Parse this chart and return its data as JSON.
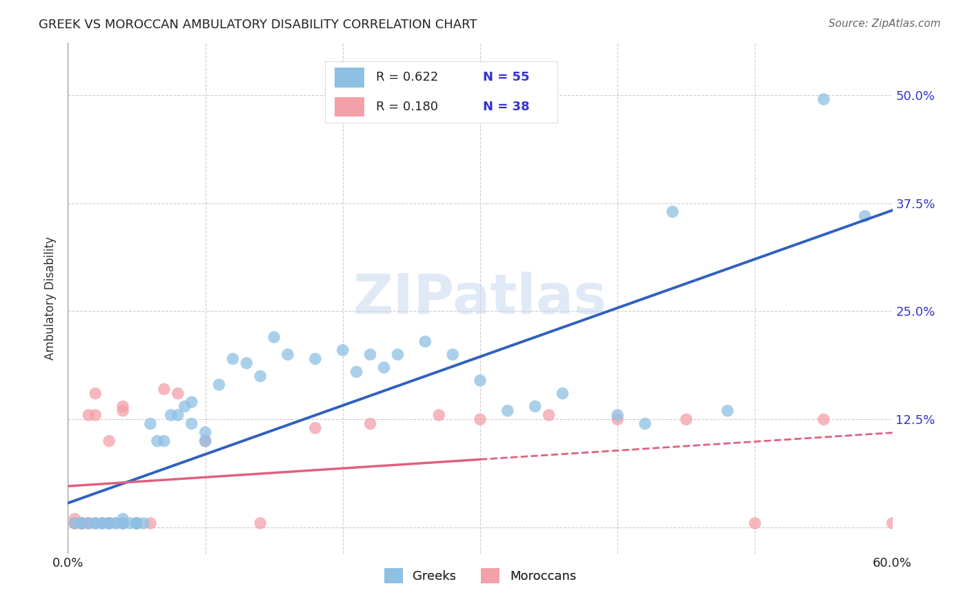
{
  "title": "GREEK VS MOROCCAN AMBULATORY DISABILITY CORRELATION CHART",
  "source": "Source: ZipAtlas.com",
  "xlabel_label": "Greeks",
  "xlabel_label2": "Moroccans",
  "ylabel": "Ambulatory Disability",
  "xlim": [
    0.0,
    0.6
  ],
  "ylim": [
    -0.03,
    0.56
  ],
  "x_ticks": [
    0.0,
    0.1,
    0.2,
    0.3,
    0.4,
    0.5,
    0.6
  ],
  "x_tick_labels": [
    "0.0%",
    "",
    "",
    "",
    "",
    "",
    "60.0%"
  ],
  "y_ticks": [
    0.0,
    0.125,
    0.25,
    0.375,
    0.5
  ],
  "y_tick_labels_right": [
    "",
    "12.5%",
    "25.0%",
    "37.5%",
    "50.0%"
  ],
  "grid_color": "#cccccc",
  "background_color": "#ffffff",
  "watermark": "ZIPatlas",
  "legend_R1": "R = 0.622",
  "legend_N1": "N = 55",
  "legend_R2": "R = 0.180",
  "legend_N2": "N = 38",
  "blue_color": "#8ec0e4",
  "pink_color": "#f4a0a8",
  "blue_line_color": "#3060c0",
  "pink_line_color": "#e06080",
  "legend_text_color": "#3333cc",
  "greeks_x": [
    0.005,
    0.01,
    0.01,
    0.015,
    0.02,
    0.02,
    0.025,
    0.025,
    0.03,
    0.03,
    0.03,
    0.035,
    0.035,
    0.04,
    0.04,
    0.04,
    0.045,
    0.05,
    0.05,
    0.05,
    0.055,
    0.06,
    0.065,
    0.07,
    0.075,
    0.08,
    0.085,
    0.09,
    0.09,
    0.1,
    0.1,
    0.11,
    0.12,
    0.13,
    0.14,
    0.15,
    0.16,
    0.18,
    0.2,
    0.21,
    0.22,
    0.23,
    0.24,
    0.26,
    0.28,
    0.3,
    0.32,
    0.34,
    0.36,
    0.4,
    0.42,
    0.44,
    0.48,
    0.55,
    0.58
  ],
  "greeks_y": [
    0.005,
    0.005,
    0.005,
    0.005,
    0.005,
    0.005,
    0.005,
    0.005,
    0.005,
    0.005,
    0.005,
    0.005,
    0.005,
    0.005,
    0.01,
    0.005,
    0.005,
    0.005,
    0.005,
    0.005,
    0.005,
    0.12,
    0.1,
    0.1,
    0.13,
    0.13,
    0.14,
    0.145,
    0.12,
    0.11,
    0.1,
    0.165,
    0.195,
    0.19,
    0.175,
    0.22,
    0.2,
    0.195,
    0.205,
    0.18,
    0.2,
    0.185,
    0.2,
    0.215,
    0.2,
    0.17,
    0.135,
    0.14,
    0.155,
    0.13,
    0.12,
    0.365,
    0.135,
    0.495,
    0.36
  ],
  "moroccans_x": [
    0.005,
    0.005,
    0.005,
    0.01,
    0.01,
    0.01,
    0.01,
    0.01,
    0.015,
    0.015,
    0.015,
    0.02,
    0.02,
    0.02,
    0.025,
    0.03,
    0.03,
    0.03,
    0.04,
    0.04,
    0.04,
    0.05,
    0.05,
    0.06,
    0.07,
    0.08,
    0.1,
    0.14,
    0.18,
    0.22,
    0.27,
    0.3,
    0.35,
    0.4,
    0.45,
    0.5,
    0.55,
    0.6
  ],
  "moroccans_y": [
    0.005,
    0.005,
    0.01,
    0.005,
    0.005,
    0.005,
    0.005,
    0.005,
    0.005,
    0.005,
    0.13,
    0.005,
    0.13,
    0.155,
    0.005,
    0.1,
    0.005,
    0.005,
    0.005,
    0.135,
    0.14,
    0.005,
    0.005,
    0.005,
    0.16,
    0.155,
    0.1,
    0.005,
    0.115,
    0.12,
    0.13,
    0.125,
    0.13,
    0.125,
    0.125,
    0.005,
    0.125,
    0.005
  ]
}
